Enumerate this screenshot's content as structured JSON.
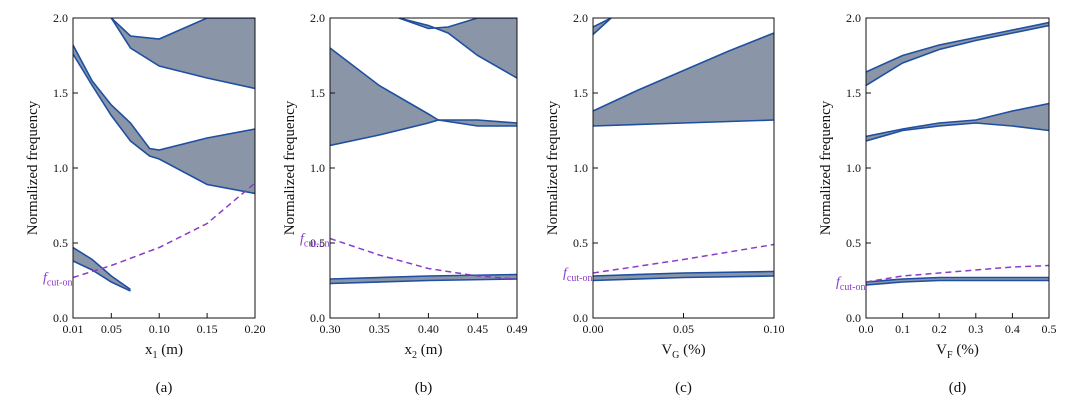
{
  "colors": {
    "band_fill": "#8a96a8",
    "band_edge": "#1f4fa0",
    "cut_on": "#8a3cc8",
    "axis": "#111111"
  },
  "chart_data": [
    {
      "type": "area",
      "panel_label": "(a)",
      "xlabel": "x",
      "xlabel_sub": "1",
      "xlabel_unit": " (m)",
      "ylabel": "Normalized frequency",
      "xlim": [
        0.01,
        0.2
      ],
      "ylim": [
        0,
        2.0
      ],
      "xticks": [
        "0.01",
        "0.05",
        "0.10",
        "0.15",
        "0.20"
      ],
      "xtick_values": [
        0.01,
        0.05,
        0.1,
        0.15,
        0.2
      ],
      "yticks": [
        "0.0",
        "0.5",
        "1.0",
        "1.5",
        "2.0"
      ],
      "ytick_values": [
        0,
        0.5,
        1.0,
        1.5,
        2.0
      ],
      "cut_on_label": "f",
      "cut_on_sub": "cut-on",
      "cut_on": {
        "x": [
          0.01,
          0.05,
          0.1,
          0.15,
          0.2
        ],
        "y": [
          0.27,
          0.35,
          0.47,
          0.63,
          0.9
        ]
      },
      "bands": [
        {
          "lower": {
            "x": [
              0.01,
              0.03,
              0.05,
              0.07
            ],
            "y": [
              0.38,
              0.32,
              0.24,
              0.18
            ]
          },
          "upper": {
            "x": [
              0.01,
              0.03,
              0.05,
              0.07
            ],
            "y": [
              0.47,
              0.39,
              0.28,
              0.19
            ]
          }
        },
        {
          "lower": {
            "x": [
              0.01,
              0.03,
              0.05,
              0.07,
              0.09,
              0.1,
              0.15,
              0.2
            ],
            "y": [
              1.76,
              1.55,
              1.35,
              1.18,
              1.08,
              1.06,
              0.89,
              0.83
            ]
          },
          "upper": {
            "x": [
              0.01,
              0.03,
              0.05,
              0.07,
              0.09,
              0.1,
              0.15,
              0.2
            ],
            "y": [
              1.82,
              1.58,
              1.42,
              1.3,
              1.13,
              1.12,
              1.2,
              1.26
            ]
          }
        },
        {
          "lower": {
            "x": [
              0.05,
              0.07,
              0.1,
              0.15,
              0.2
            ],
            "y": [
              2.0,
              1.8,
              1.68,
              1.6,
              1.53
            ]
          },
          "upper": {
            "x": [
              0.05,
              0.07,
              0.1,
              0.15,
              0.2
            ],
            "y": [
              2.0,
              1.88,
              1.86,
              2.0,
              2.0
            ]
          }
        }
      ]
    },
    {
      "type": "area",
      "panel_label": "(b)",
      "xlabel": "x",
      "xlabel_sub": "2",
      "xlabel_unit": " (m)",
      "ylabel": "Normalized frequency",
      "xlim": [
        0.3,
        0.49
      ],
      "ylim": [
        0,
        2.0
      ],
      "xticks": [
        "0.30",
        "0.35",
        "0.40",
        "0.45",
        "0.49"
      ],
      "xtick_values": [
        0.3,
        0.35,
        0.4,
        0.45,
        0.49
      ],
      "yticks": [
        "0.0",
        "0.5",
        "1.0",
        "1.5",
        "2.0"
      ],
      "ytick_values": [
        0,
        0.5,
        1.0,
        1.5,
        2.0
      ],
      "cut_on_label": "f",
      "cut_on_sub": "cut-on",
      "cut_on": {
        "x": [
          0.3,
          0.35,
          0.4,
          0.45,
          0.49
        ],
        "y": [
          0.53,
          0.42,
          0.33,
          0.28,
          0.26
        ]
      },
      "bands": [
        {
          "lower": {
            "x": [
              0.3,
              0.4,
              0.49
            ],
            "y": [
              0.23,
              0.25,
              0.26
            ]
          },
          "upper": {
            "x": [
              0.3,
              0.4,
              0.49
            ],
            "y": [
              0.26,
              0.28,
              0.29
            ]
          }
        },
        {
          "lower": {
            "x": [
              0.3,
              0.35,
              0.4,
              0.41,
              0.45,
              0.49
            ],
            "y": [
              1.15,
              1.22,
              1.3,
              1.32,
              1.28,
              1.28
            ]
          },
          "upper": {
            "x": [
              0.3,
              0.35,
              0.4,
              0.41,
              0.45,
              0.49
            ],
            "y": [
              1.8,
              1.55,
              1.36,
              1.32,
              1.32,
              1.3
            ]
          }
        },
        {
          "lower": {
            "x": [
              0.37,
              0.4,
              0.42,
              0.45,
              0.49
            ],
            "y": [
              2.0,
              1.95,
              1.9,
              1.75,
              1.6
            ]
          },
          "upper": {
            "x": [
              0.37,
              0.4,
              0.42,
              0.45,
              0.49
            ],
            "y": [
              2.0,
              1.93,
              1.94,
              2.0,
              2.0
            ]
          }
        }
      ]
    },
    {
      "type": "area",
      "panel_label": "(c)",
      "xlabel": "V",
      "xlabel_sub": "G",
      "xlabel_unit": " (%)",
      "ylabel": "Normalized frequency",
      "xlim": [
        0,
        0.1
      ],
      "ylim": [
        0,
        2.0
      ],
      "xticks": [
        "0.00",
        "0.05",
        "0.10"
      ],
      "xtick_values": [
        0,
        0.05,
        0.1
      ],
      "yticks": [
        "0.0",
        "0.5",
        "1.0",
        "1.5",
        "2.0"
      ],
      "ytick_values": [
        0,
        0.5,
        1.0,
        1.5,
        2.0
      ],
      "cut_on_label": "f",
      "cut_on_sub": "cut-on",
      "cut_on": {
        "x": [
          0,
          0.05,
          0.1
        ],
        "y": [
          0.3,
          0.39,
          0.49
        ]
      },
      "bands": [
        {
          "lower": {
            "x": [
              0,
              0.05,
              0.1
            ],
            "y": [
              0.25,
              0.27,
              0.28
            ]
          },
          "upper": {
            "x": [
              0,
              0.05,
              0.1
            ],
            "y": [
              0.28,
              0.3,
              0.31
            ]
          }
        },
        {
          "lower": {
            "x": [
              0,
              0.05,
              0.1
            ],
            "y": [
              1.28,
              1.3,
              1.32
            ]
          },
          "upper": {
            "x": [
              0,
              0.025,
              0.05,
              0.075,
              0.1
            ],
            "y": [
              1.38,
              1.52,
              1.65,
              1.78,
              1.9
            ]
          }
        },
        {
          "lower": {
            "x": [
              0,
              0.01
            ],
            "y": [
              1.89,
              2.0
            ]
          },
          "upper": {
            "x": [
              0,
              0.01
            ],
            "y": [
              1.94,
              2.0
            ]
          }
        }
      ]
    },
    {
      "type": "area",
      "panel_label": "(d)",
      "xlabel": "V",
      "xlabel_sub": "F",
      "xlabel_unit": " (%)",
      "ylabel": "Normalized frequency",
      "xlim": [
        0,
        0.5
      ],
      "ylim": [
        0,
        2.0
      ],
      "xticks": [
        "0.0",
        "0.1",
        "0.2",
        "0.3",
        "0.4",
        "0.5"
      ],
      "xtick_values": [
        0,
        0.1,
        0.2,
        0.3,
        0.4,
        0.5
      ],
      "yticks": [
        "0.0",
        "0.5",
        "1.0",
        "1.5",
        "2.0"
      ],
      "ytick_values": [
        0,
        0.5,
        1.0,
        1.5,
        2.0
      ],
      "cut_on_label": "f",
      "cut_on_sub": "cut-on",
      "cut_on": {
        "x": [
          0,
          0.1,
          0.2,
          0.3,
          0.4,
          0.5
        ],
        "y": [
          0.24,
          0.28,
          0.3,
          0.32,
          0.34,
          0.35
        ]
      },
      "bands": [
        {
          "lower": {
            "x": [
              0,
              0.1,
              0.2,
              0.3,
              0.4,
              0.5
            ],
            "y": [
              0.22,
              0.24,
              0.25,
              0.25,
              0.25,
              0.25
            ]
          },
          "upper": {
            "x": [
              0,
              0.1,
              0.2,
              0.3,
              0.4,
              0.5
            ],
            "y": [
              0.24,
              0.26,
              0.27,
              0.27,
              0.27,
              0.27
            ]
          }
        },
        {
          "lower": {
            "x": [
              0,
              0.1,
              0.2,
              0.3,
              0.4,
              0.5
            ],
            "y": [
              1.18,
              1.25,
              1.28,
              1.3,
              1.28,
              1.25
            ]
          },
          "upper": {
            "x": [
              0,
              0.1,
              0.2,
              0.3,
              0.4,
              0.5
            ],
            "y": [
              1.21,
              1.26,
              1.3,
              1.32,
              1.38,
              1.43
            ]
          }
        },
        {
          "lower": {
            "x": [
              0,
              0.1,
              0.2,
              0.3,
              0.4,
              0.5
            ],
            "y": [
              1.55,
              1.7,
              1.79,
              1.85,
              1.9,
              1.95
            ]
          },
          "upper": {
            "x": [
              0,
              0.1,
              0.2,
              0.3,
              0.4,
              0.5
            ],
            "y": [
              1.64,
              1.75,
              1.82,
              1.87,
              1.92,
              1.97
            ]
          }
        }
      ]
    }
  ]
}
